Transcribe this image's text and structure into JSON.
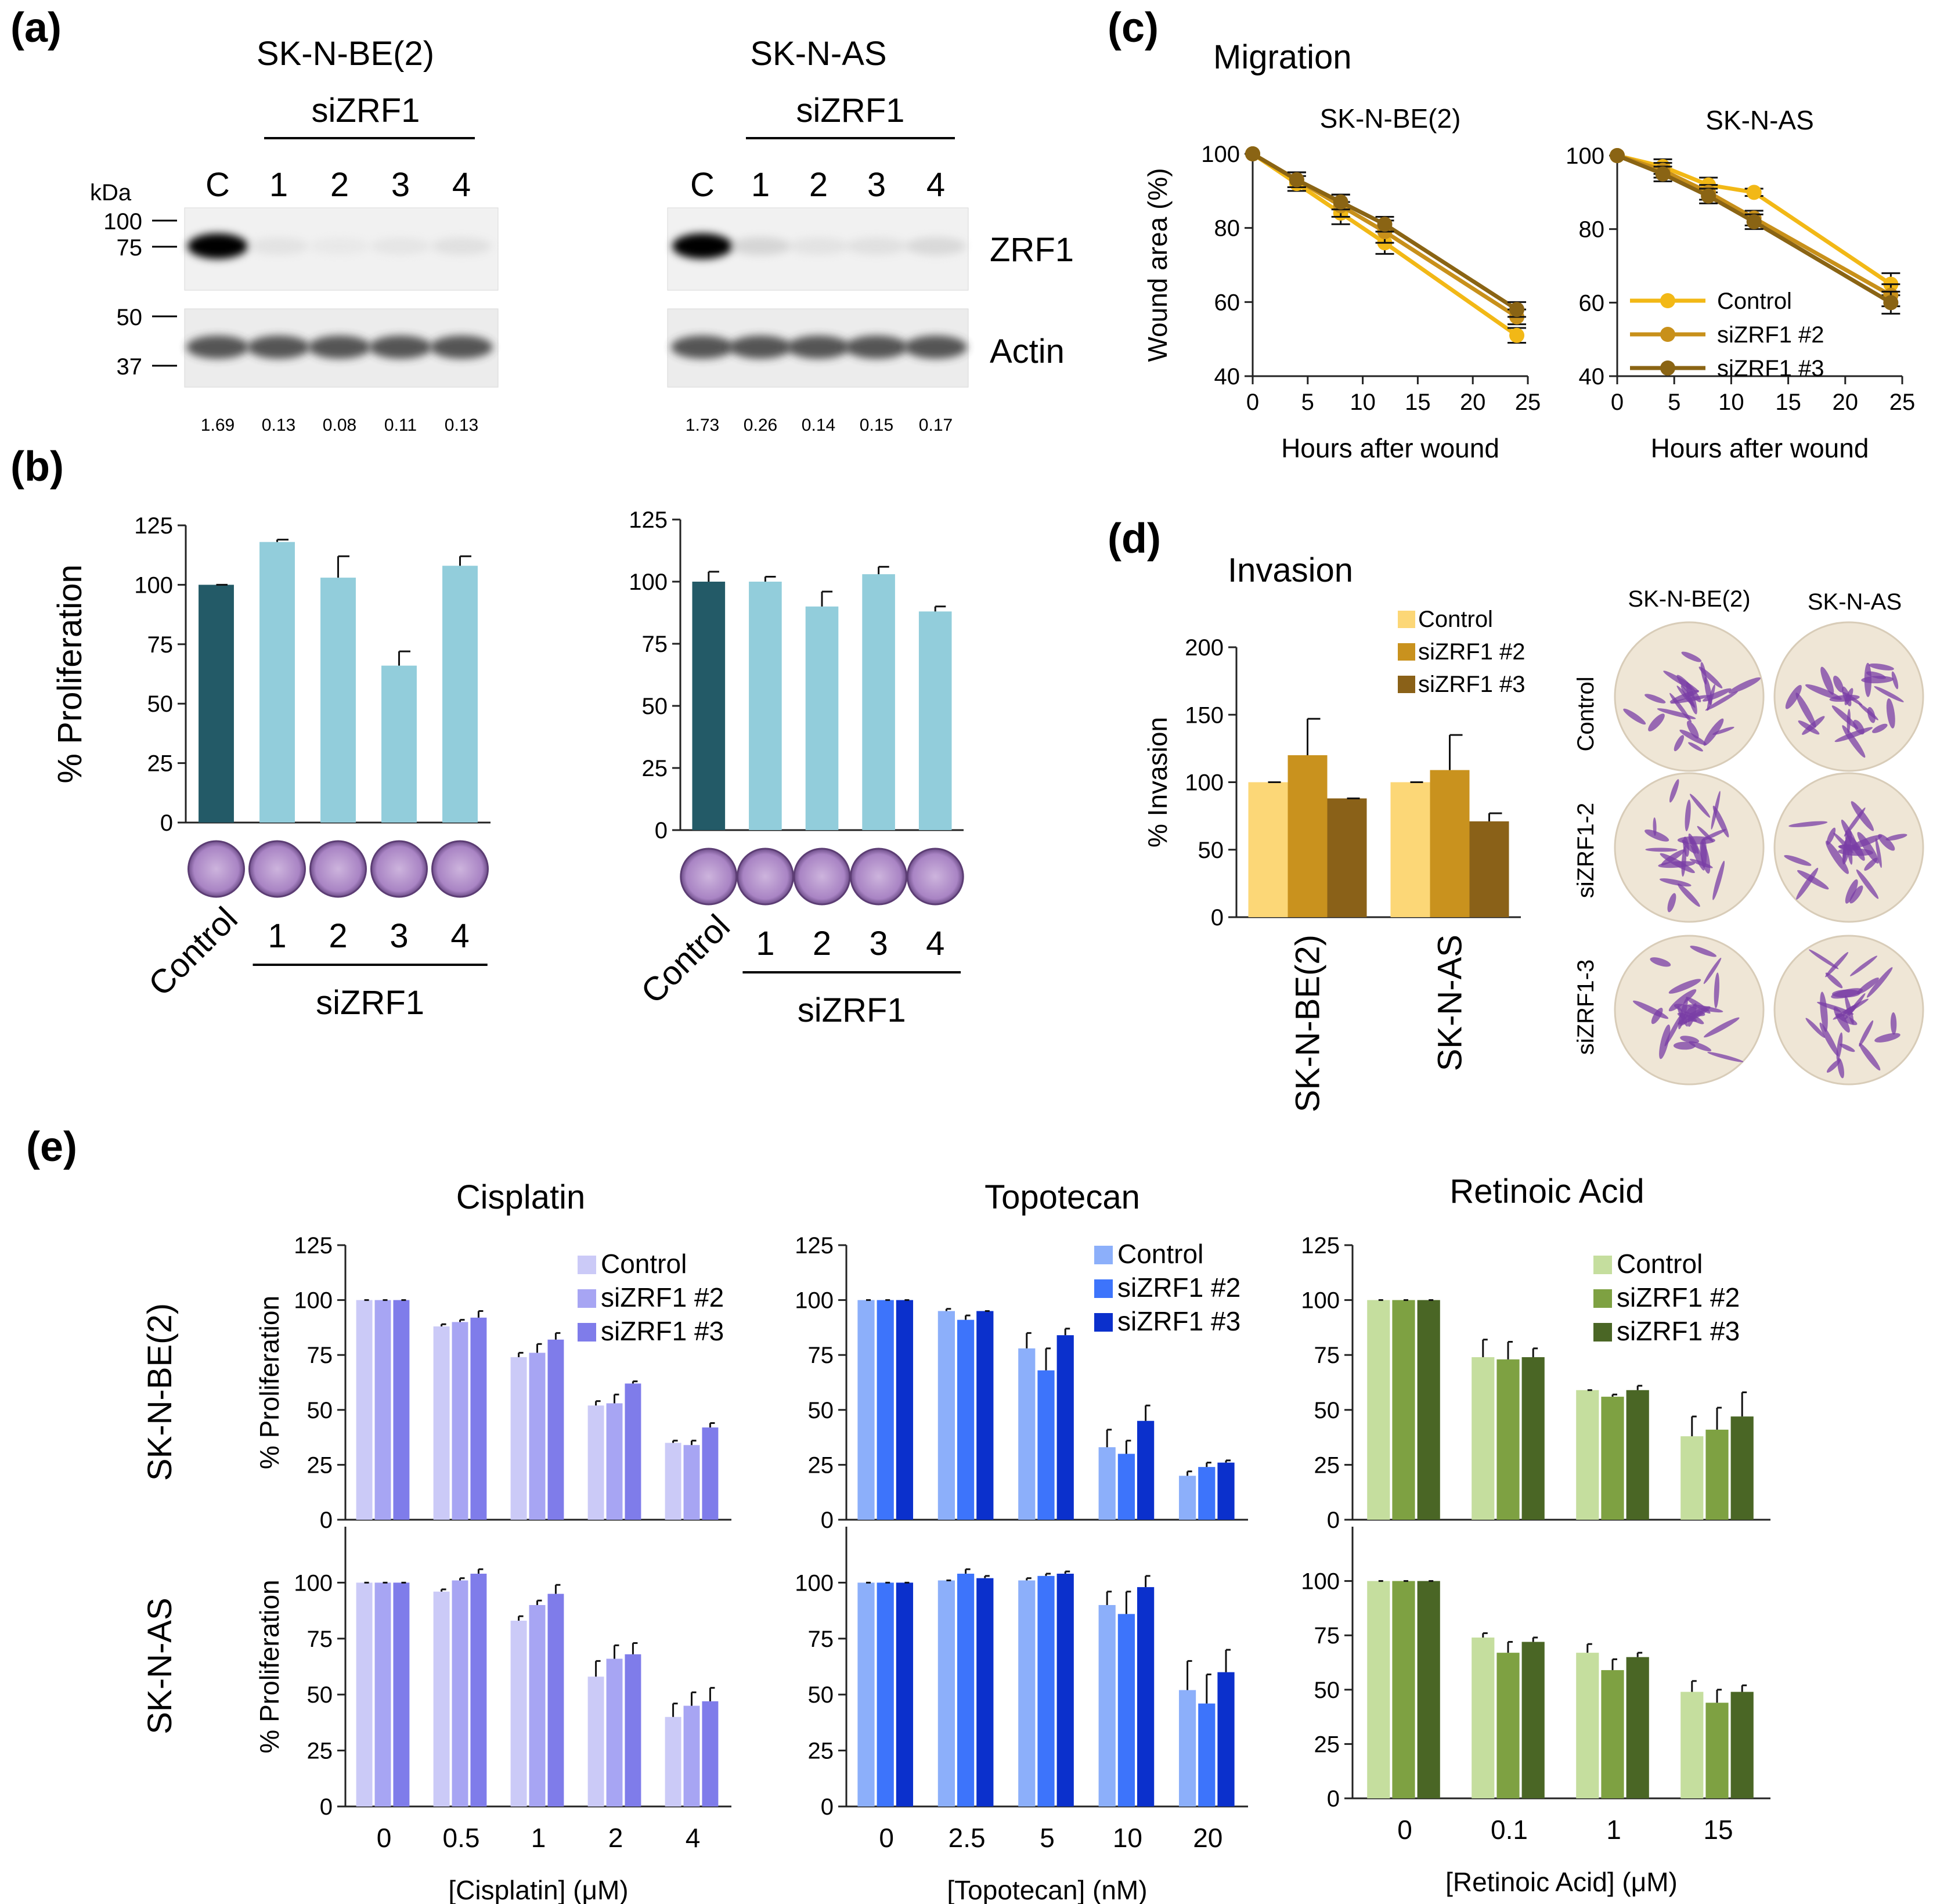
{
  "panels": {
    "a": {
      "label": "(a)",
      "kda_label": "kDa",
      "markers": [
        "100",
        "75",
        "50",
        "37"
      ],
      "blots": [
        {
          "cell": "SK-N-BE(2)",
          "group": "siZRF1",
          "lanes": [
            "C",
            "1",
            "2",
            "3",
            "4"
          ],
          "quant": [
            "1.69",
            "0.13",
            "0.08",
            "0.11",
            "0.13"
          ],
          "zrf1_intensity": [
            1.0,
            0.1,
            0.05,
            0.08,
            0.12
          ]
        },
        {
          "cell": "SK-N-AS",
          "group": "siZRF1",
          "lanes": [
            "C",
            "1",
            "2",
            "3",
            "4"
          ],
          "quant": [
            "1.73",
            "0.26",
            "0.14",
            "0.15",
            "0.17"
          ],
          "zrf1_intensity": [
            1.0,
            0.2,
            0.1,
            0.12,
            0.18
          ]
        }
      ],
      "bands": [
        "ZRF1",
        "Actin"
      ]
    },
    "b": {
      "label": "(b)"
    },
    "c": {
      "label": "(c)",
      "title": "Migration"
    },
    "d": {
      "label": "(d)",
      "title": "Invasion",
      "image_columns": [
        "SK-N-BE(2)",
        "SK-N-AS"
      ],
      "image_rows": [
        "Control",
        "siZRF1-2",
        "siZRF1-3"
      ]
    },
    "e": {
      "label": "(e)",
      "titles": [
        "Cisplatin",
        "Topotecan",
        "Retinoic Acid"
      ],
      "row_labels": [
        "SK-N-BE(2)",
        "SK-N-AS"
      ]
    }
  },
  "colors": {
    "b_control": "#235a67",
    "b_si": "#92cddb",
    "c": [
      "#f2b816",
      "#c8901a",
      "#8a6414"
    ],
    "d": [
      "#fcd777",
      "#c9921e",
      "#8a6118"
    ],
    "cis": [
      "#cbcaf7",
      "#a7a5f3",
      "#7f7cea"
    ],
    "topo": [
      "#8caffa",
      "#3d74fb",
      "#0b30cc"
    ],
    "ra": [
      "#c5de9e",
      "#7ea142",
      "#4a6625"
    ],
    "stain": "#7a3da6"
  },
  "chart_data": [
    {
      "id": "b-left",
      "type": "bar",
      "categories": [
        "Control",
        "1",
        "2",
        "3",
        "4"
      ],
      "values": [
        100,
        118,
        103,
        66,
        108
      ],
      "errors": [
        0,
        1,
        9,
        6,
        4
      ],
      "ylabel": "% Proliferation",
      "ylim": [
        0,
        125
      ],
      "yticks": [
        "0",
        "25",
        "50",
        "75",
        "100",
        "125"
      ],
      "group_label": "siZRF1"
    },
    {
      "id": "b-right",
      "type": "bar",
      "categories": [
        "Control",
        "1",
        "2",
        "3",
        "4"
      ],
      "values": [
        100,
        100,
        90,
        103,
        88
      ],
      "errors": [
        4,
        2,
        6,
        3,
        2
      ],
      "ylabel": "",
      "ylim": [
        0,
        125
      ],
      "yticks": [
        "0",
        "25",
        "50",
        "75",
        "100",
        "125"
      ],
      "group_label": "siZRF1"
    },
    {
      "id": "c-left",
      "type": "line",
      "title": "SK-N-BE(2)",
      "x": [
        0,
        4,
        8,
        12,
        24
      ],
      "series": [
        {
          "name": "Control",
          "values": [
            100,
            92,
            84,
            76,
            51
          ],
          "errors": [
            0,
            2,
            3,
            3,
            2
          ]
        },
        {
          "name": "siZRF1 #2",
          "values": [
            100,
            93,
            86,
            79,
            56
          ],
          "errors": [
            0,
            2,
            3,
            3,
            2
          ]
        },
        {
          "name": "siZRF1 #3",
          "values": [
            100,
            93,
            87,
            81,
            58
          ],
          "errors": [
            0,
            2,
            2,
            2,
            2
          ]
        }
      ],
      "xlabel": "Hours after wound",
      "ylabel": "Wound area (%)",
      "xlim": [
        0,
        25
      ],
      "ylim": [
        40,
        100
      ],
      "xticks": [
        "0",
        "5",
        "10",
        "15",
        "20",
        "25"
      ],
      "yticks": [
        "40",
        "60",
        "80",
        "100"
      ]
    },
    {
      "id": "c-right",
      "type": "line",
      "title": "SK-N-AS",
      "x": [
        0,
        4,
        8,
        12,
        24
      ],
      "series": [
        {
          "name": "Control",
          "values": [
            100,
            97,
            92,
            90,
            65
          ],
          "errors": [
            0,
            2,
            2,
            1,
            3
          ]
        },
        {
          "name": "siZRF1 #2",
          "values": [
            100,
            96,
            90,
            83,
            62
          ],
          "errors": [
            0,
            2,
            2,
            2,
            3
          ]
        },
        {
          "name": "siZRF1 #3",
          "values": [
            100,
            95,
            89,
            82,
            60
          ],
          "errors": [
            0,
            2,
            2,
            2,
            3
          ]
        }
      ],
      "xlabel": "Hours after wound",
      "ylabel": "",
      "xlim": [
        0,
        25
      ],
      "ylim": [
        40,
        100
      ],
      "xticks": [
        "0",
        "5",
        "10",
        "15",
        "20",
        "25"
      ],
      "yticks": [
        "40",
        "60",
        "80",
        "100"
      ]
    },
    {
      "id": "d",
      "type": "bar",
      "categories": [
        "SK-N-BE(2)",
        "SK-N-AS"
      ],
      "series": [
        {
          "name": "Control",
          "values": [
            100,
            100
          ],
          "errors": [
            0,
            0
          ]
        },
        {
          "name": "siZRF1 #2",
          "values": [
            120,
            109
          ],
          "errors": [
            27,
            26
          ]
        },
        {
          "name": "siZRF1 #3",
          "values": [
            88,
            71
          ],
          "errors": [
            0,
            6
          ]
        }
      ],
      "ylabel": "% Invasion",
      "ylim": [
        0,
        200
      ],
      "yticks": [
        "0",
        "50",
        "100",
        "150",
        "200"
      ]
    },
    {
      "id": "e-cis-top",
      "type": "bar",
      "categories": [
        "0",
        "0.5",
        "1",
        "2",
        "4"
      ],
      "series": [
        {
          "name": "Control",
          "values": [
            100,
            88,
            74,
            52,
            35
          ],
          "errors": [
            0,
            1,
            2,
            2,
            1
          ]
        },
        {
          "name": "siZRF1 #2",
          "values": [
            100,
            90,
            76,
            53,
            34
          ],
          "errors": [
            0,
            1,
            4,
            4,
            2
          ]
        },
        {
          "name": "siZRF1 #3",
          "values": [
            100,
            92,
            82,
            62,
            42
          ],
          "errors": [
            0,
            3,
            3,
            1,
            2
          ]
        }
      ],
      "ylabel": "% Proliferation",
      "ylim": [
        0,
        125
      ],
      "yticks": [
        "0",
        "25",
        "50",
        "75",
        "100",
        "125"
      ]
    },
    {
      "id": "e-cis-bot",
      "type": "bar",
      "categories": [
        "0",
        "0.5",
        "1",
        "2",
        "4"
      ],
      "series": [
        {
          "name": "Control",
          "values": [
            100,
            96,
            83,
            58,
            40
          ],
          "errors": [
            0,
            1,
            2,
            7,
            6
          ]
        },
        {
          "name": "siZRF1 #2",
          "values": [
            100,
            101,
            90,
            66,
            45
          ],
          "errors": [
            0,
            1,
            2,
            6,
            6
          ]
        },
        {
          "name": "siZRF1 #3",
          "values": [
            100,
            104,
            95,
            68,
            47
          ],
          "errors": [
            0,
            2,
            4,
            5,
            6
          ]
        }
      ],
      "xlabel": "[Cisplatin] (μM)",
      "ylabel": "% Proliferation",
      "ylim": [
        0,
        125
      ],
      "yticks": [
        "0",
        "25",
        "50",
        "75",
        "100"
      ]
    },
    {
      "id": "e-topo-top",
      "type": "bar",
      "categories": [
        "0",
        "2.5",
        "5",
        "10",
        "20"
      ],
      "series": [
        {
          "name": "Control",
          "values": [
            100,
            95,
            78,
            33,
            20
          ],
          "errors": [
            0,
            1,
            7,
            8,
            2
          ]
        },
        {
          "name": "siZRF1 #2",
          "values": [
            100,
            91,
            68,
            30,
            24
          ],
          "errors": [
            0,
            2,
            10,
            6,
            2
          ]
        },
        {
          "name": "siZRF1 #3",
          "values": [
            100,
            95,
            84,
            45,
            26
          ],
          "errors": [
            0,
            0,
            3,
            7,
            1
          ]
        }
      ],
      "ylim": [
        0,
        125
      ],
      "yticks": [
        "0",
        "25",
        "50",
        "75",
        "100",
        "125"
      ]
    },
    {
      "id": "e-topo-bot",
      "type": "bar",
      "categories": [
        "0",
        "2.5",
        "5",
        "10",
        "20"
      ],
      "series": [
        {
          "name": "Control",
          "values": [
            100,
            101,
            101,
            90,
            52
          ],
          "errors": [
            0,
            0,
            1,
            6,
            13
          ]
        },
        {
          "name": "siZRF1 #2",
          "values": [
            100,
            104,
            103,
            86,
            46
          ],
          "errors": [
            0,
            2,
            1,
            10,
            13
          ]
        },
        {
          "name": "siZRF1 #3",
          "values": [
            100,
            102,
            104,
            98,
            60
          ],
          "errors": [
            0,
            1,
            1,
            5,
            10
          ]
        }
      ],
      "xlabel": "[Topotecan] (nM)",
      "ylim": [
        0,
        125
      ],
      "yticks": [
        "0",
        "25",
        "50",
        "75",
        "100"
      ]
    },
    {
      "id": "e-ra-top",
      "type": "bar",
      "categories": [
        "0",
        "0.1",
        "1",
        "15"
      ],
      "series": [
        {
          "name": "Control",
          "values": [
            100,
            74,
            59,
            38
          ],
          "errors": [
            0,
            8,
            0,
            9
          ]
        },
        {
          "name": "siZRF1 #2",
          "values": [
            100,
            73,
            56,
            41
          ],
          "errors": [
            0,
            8,
            1,
            10
          ]
        },
        {
          "name": "siZRF1 #3",
          "values": [
            100,
            74,
            59,
            47
          ],
          "errors": [
            0,
            4,
            2,
            11
          ]
        }
      ],
      "ylim": [
        0,
        125
      ],
      "yticks": [
        "0",
        "25",
        "50",
        "75",
        "100",
        "125"
      ]
    },
    {
      "id": "e-ra-bot",
      "type": "bar",
      "categories": [
        "0",
        "0.1",
        "1",
        "15"
      ],
      "series": [
        {
          "name": "Control",
          "values": [
            100,
            74,
            67,
            49
          ],
          "errors": [
            0,
            2,
            4,
            5
          ]
        },
        {
          "name": "siZRF1 #2",
          "values": [
            100,
            67,
            59,
            44
          ],
          "errors": [
            0,
            5,
            5,
            6
          ]
        },
        {
          "name": "siZRF1 #3",
          "values": [
            100,
            72,
            65,
            49
          ],
          "errors": [
            0,
            2,
            2,
            3
          ]
        }
      ],
      "xlabel": "[Retinoic Acid] (μM)",
      "ylim": [
        0,
        125
      ],
      "yticks": [
        "0",
        "25",
        "50",
        "75",
        "100"
      ]
    }
  ]
}
